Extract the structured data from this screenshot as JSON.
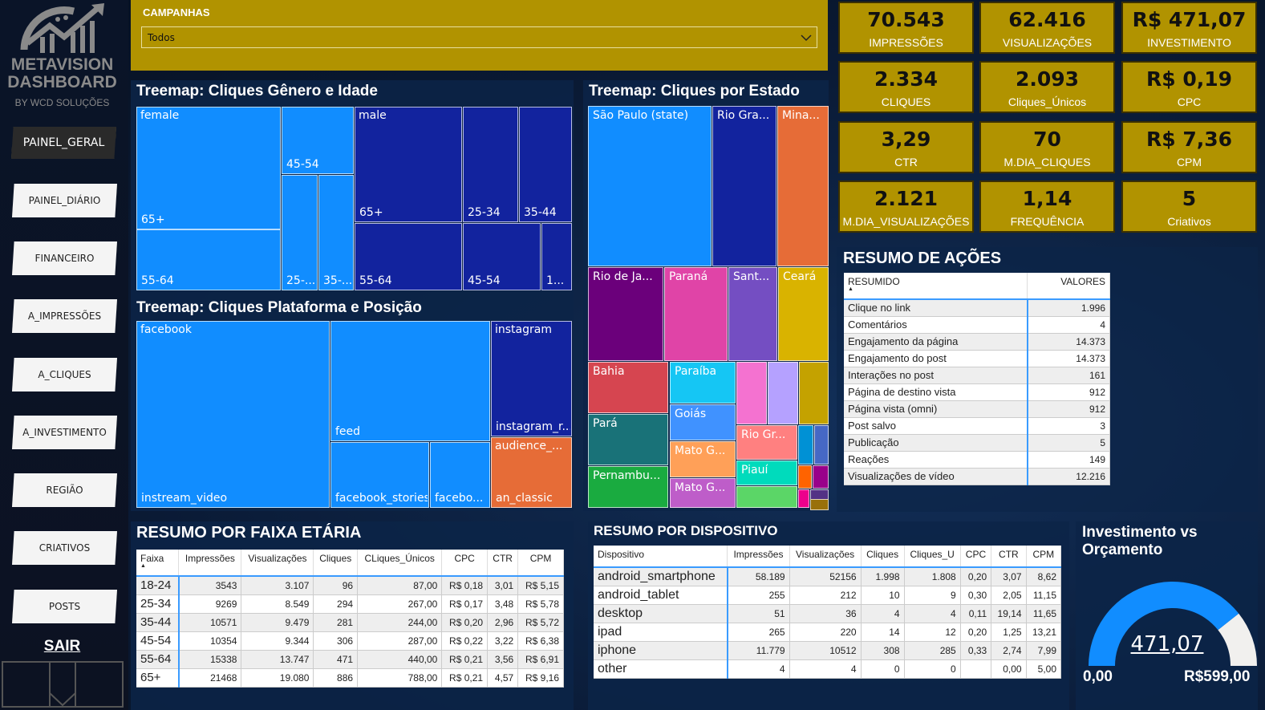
{
  "logo": {
    "line1": "METAVISION",
    "line2": "DASHBOARD",
    "byline": "BY WCD SOLUÇÕES"
  },
  "nav": [
    {
      "label": "PAINEL_GERAL",
      "active": true
    },
    {
      "label": "PAINEL_DIÁRIO"
    },
    {
      "label": "FINANCEIRO"
    },
    {
      "label": "A_IMPRESSÕES"
    },
    {
      "label": "A_CLIQUES"
    },
    {
      "label": "A_INVESTIMENTO"
    },
    {
      "label": "REGIÃO"
    },
    {
      "label": "CRIATIVOS"
    },
    {
      "label": "POSTS"
    }
  ],
  "exit_label": "SAIR",
  "filter": {
    "label": "CAMPANHAS",
    "value": "Todos"
  },
  "kpis": [
    {
      "value": "70.543",
      "label": "IMPRESSÕES"
    },
    {
      "value": "62.416",
      "label": "VISUALIZAÇÕES"
    },
    {
      "value": "R$ 471,07",
      "label": "INVESTIMENTO"
    },
    {
      "value": "2.334",
      "label": "CLIQUES"
    },
    {
      "value": "2.093",
      "label": "Cliques_Únicos"
    },
    {
      "value": "R$ 0,19",
      "label": "CPC"
    },
    {
      "value": "3,29",
      "label": "CTR"
    },
    {
      "value": "70",
      "label": "M.DIA_CLIQUES"
    },
    {
      "value": "R$ 7,36",
      "label": "CPM"
    },
    {
      "value": "2.121",
      "label": "M.DIA_VISUALIZAÇÕES"
    },
    {
      "value": "1,14",
      "label": "FREQUÊNCIA"
    },
    {
      "value": "5",
      "label": "Criativos"
    }
  ],
  "colors": {
    "kpi_bg": "#b19300",
    "primary_blue": "#118DFF",
    "dark_blue": "#12239E",
    "gauge_rest": "#F1F0EE"
  },
  "treemap_gender": {
    "title": "Treemap: Cliques Gênero e Idade",
    "cells": [
      {
        "label": "female",
        "color": "#118DFF"
      },
      {
        "label": "65+",
        "color": "#118DFF"
      },
      {
        "label": "55-64",
        "color": "#118DFF"
      },
      {
        "label": "45-54",
        "color": "#118DFF"
      },
      {
        "label": "25-...",
        "color": "#118DFF"
      },
      {
        "label": "35-...",
        "color": "#118DFF"
      },
      {
        "label": "male",
        "color": "#12239E"
      },
      {
        "label": "65+",
        "color": "#12239E"
      },
      {
        "label": "55-64",
        "color": "#12239E"
      },
      {
        "label": "25-34",
        "color": "#12239E"
      },
      {
        "label": "35-44",
        "color": "#12239E"
      },
      {
        "label": "45-54",
        "color": "#12239E"
      },
      {
        "label": "1...",
        "color": "#12239E"
      }
    ]
  },
  "treemap_platform": {
    "title": "Treemap: Cliques Plataforma e Posição",
    "cells": [
      {
        "label": "facebook",
        "color": "#118DFF"
      },
      {
        "label": "instream_video",
        "color": "#118DFF"
      },
      {
        "label": "feed",
        "color": "#118DFF"
      },
      {
        "label": "facebook_stories",
        "color": "#118DFF"
      },
      {
        "label": "facebo...",
        "color": "#118DFF"
      },
      {
        "label": "instagram",
        "color": "#12239E"
      },
      {
        "label": "instagram_r...",
        "color": "#12239E"
      },
      {
        "label": "audience_...",
        "color": "#E66C37"
      },
      {
        "label": "an_classic",
        "color": "#E66C37"
      }
    ]
  },
  "treemap_state": {
    "title": "Treemap: Cliques por Estado",
    "cells": [
      {
        "label": "São Paulo (state)",
        "color": "#118DFF"
      },
      {
        "label": "Rio Gra...",
        "color": "#12239E"
      },
      {
        "label": "Mina...",
        "color": "#E66C37"
      },
      {
        "label": "Rio de Ja...",
        "color": "#6B007B"
      },
      {
        "label": "Paraná",
        "color": "#E044A7"
      },
      {
        "label": "Sant...",
        "color": "#744EC2"
      },
      {
        "label": "Ceará",
        "color": "#D9B300"
      },
      {
        "label": "Bahia",
        "color": "#D64550"
      },
      {
        "label": "Pará",
        "color": "#197278"
      },
      {
        "label": "Pernambu...",
        "color": "#1AAB40"
      },
      {
        "label": "Paraíba",
        "color": "#15C6F4"
      },
      {
        "label": "Goiás",
        "color": "#4092FF"
      },
      {
        "label": "Mato G...",
        "color": "#FFA058"
      },
      {
        "label": "Mato G...",
        "color": "#BE5DC9"
      },
      {
        "label": "",
        "color": "#F472D0"
      },
      {
        "label": "",
        "color": "#B5A1FF"
      },
      {
        "label": "",
        "color": "#C4A200"
      },
      {
        "label": "Rio Gr...",
        "color": "#FF8080"
      },
      {
        "label": "Piauí",
        "color": "#00DBBC"
      },
      {
        "label": "",
        "color": "#5BD667"
      },
      {
        "label": "",
        "color": "#0091D5"
      },
      {
        "label": "",
        "color": "#4668C5"
      },
      {
        "label": "",
        "color": "#FF6300"
      },
      {
        "label": "",
        "color": "#99008A"
      },
      {
        "label": "",
        "color": "#EC008C"
      },
      {
        "label": "",
        "color": "#533285"
      },
      {
        "label": "",
        "color": "#99700A"
      }
    ]
  },
  "actions": {
    "title": "RESUMO DE AÇÕES",
    "headers": [
      "RESUMIDO",
      "VALORES"
    ],
    "rows": [
      [
        "Clique no link",
        "1.996"
      ],
      [
        "Comentários",
        "4"
      ],
      [
        "Engajamento da página",
        "14.373"
      ],
      [
        "Engajamento do post",
        "14.373"
      ],
      [
        "Interações no post",
        "161"
      ],
      [
        "Página de destino vista",
        "912"
      ],
      [
        "Página vista (omni)",
        "912"
      ],
      [
        "Post salvo",
        "3"
      ],
      [
        "Publicação",
        "5"
      ],
      [
        "Reações",
        "149"
      ],
      [
        "Visualizações de vídeo",
        "12.216"
      ]
    ]
  },
  "age": {
    "title": "RESUMO POR FAIXA ETÁRIA",
    "headers": [
      "Faixa",
      "Impressões",
      "Visualizações",
      "Cliques",
      "CLiques_Únicos",
      "CPC",
      "CTR",
      "CPM"
    ],
    "rows": [
      [
        "18-24",
        "3543",
        "3.107",
        "96",
        "87,00",
        "R$ 0,18",
        "3,01",
        "R$ 5,15"
      ],
      [
        "25-34",
        "9269",
        "8.549",
        "294",
        "267,00",
        "R$ 0,17",
        "3,48",
        "R$ 5,78"
      ],
      [
        "35-44",
        "10571",
        "9.479",
        "281",
        "244,00",
        "R$ 0,20",
        "2,96",
        "R$ 5,72"
      ],
      [
        "45-54",
        "10354",
        "9.344",
        "306",
        "287,00",
        "R$ 0,22",
        "3,22",
        "R$ 6,38"
      ],
      [
        "55-64",
        "15338",
        "13.747",
        "471",
        "440,00",
        "R$ 0,21",
        "3,56",
        "R$ 6,91"
      ],
      [
        "65+",
        "21468",
        "19.080",
        "886",
        "788,00",
        "R$ 0,21",
        "4,57",
        "R$ 9,16"
      ]
    ]
  },
  "device": {
    "title": "RESUMO POR DISPOSITIVO",
    "headers": [
      "Dispositivo",
      "Impressões",
      "Visualizações",
      "Cliques",
      "Cliques_U",
      "CPC",
      "CTR",
      "CPM"
    ],
    "rows": [
      [
        "android_smartphone",
        "58.189",
        "52156",
        "1.998",
        "1.808",
        "0,20",
        "3,07",
        "8,62"
      ],
      [
        "android_tablet",
        "255",
        "212",
        "10",
        "9",
        "0,30",
        "2,05",
        "11,15"
      ],
      [
        "desktop",
        "51",
        "36",
        "4",
        "4",
        "0,11",
        "19,14",
        "11,65"
      ],
      [
        "ipad",
        "265",
        "220",
        "14",
        "12",
        "0,20",
        "1,25",
        "13,21"
      ],
      [
        "iphone",
        "11.779",
        "10512",
        "308",
        "285",
        "0,33",
        "2,74",
        "7,99"
      ],
      [
        "other",
        "4",
        "4",
        "0",
        "0",
        "",
        "0,00",
        "5,00"
      ]
    ]
  },
  "gauge": {
    "title_line1": "Investimento vs",
    "title_line2": "Orçamento",
    "value": 471.07,
    "value_label": "471,07",
    "min": 0,
    "min_label": "0,00",
    "max": 599,
    "max_label": "R$599,00"
  }
}
